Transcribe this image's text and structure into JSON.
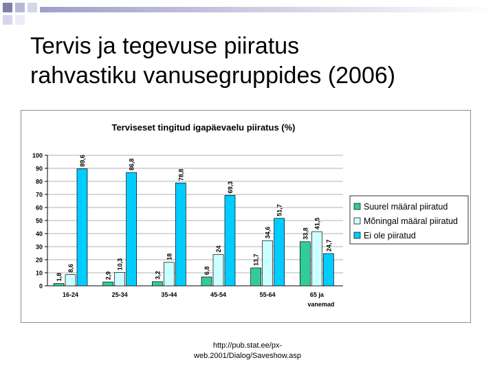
{
  "slide": {
    "title_line1": "Tervis ja tegevuse piiratus",
    "title_line2": "rahvastiku vanusegruppides (2006)",
    "source_line1": "http://pub.stat.ee/px-",
    "source_line2": "web.2001/Dialog/Saveshow.asp"
  },
  "chart_data": {
    "type": "bar",
    "title": "Terviseset tingitud igapäevaelu piiratus (%)",
    "categories": [
      "16-24",
      "25-34",
      "35-44",
      "45-54",
      "55-64",
      "65 ja vanemad"
    ],
    "category_lines": [
      [
        "16-24"
      ],
      [
        "25-34"
      ],
      [
        "35-44"
      ],
      [
        "45-54"
      ],
      [
        "55-64"
      ],
      [
        "65 ja",
        "vanemad"
      ]
    ],
    "series": [
      {
        "name": "Suurel määral piiratud",
        "values": [
          1.8,
          2.9,
          3.2,
          6.8,
          13.7,
          33.8
        ],
        "labels": [
          "1,8",
          "2,9",
          "3,2",
          "6,8",
          "13,7",
          "33,8"
        ],
        "color": "#33cc99"
      },
      {
        "name": "Mõningal määral piiratud",
        "values": [
          8.6,
          10.3,
          18,
          24,
          34.6,
          41.5
        ],
        "labels": [
          "8,6",
          "10,3",
          "18",
          "24",
          "34,6",
          "41,5"
        ],
        "color": "#ccffff"
      },
      {
        "name": "Ei ole piiratud",
        "values": [
          89.6,
          86.8,
          78.8,
          69.3,
          51.7,
          24.7
        ],
        "labels": [
          "89,6",
          "86,8",
          "78,8",
          "69,3",
          "51,7",
          "24,7"
        ],
        "color": "#00ccff"
      }
    ],
    "ylim": [
      0,
      100
    ],
    "yticks": [
      0,
      10,
      20,
      30,
      40,
      50,
      60,
      70,
      80,
      90,
      100
    ],
    "grid": true,
    "legend_position": "right"
  }
}
